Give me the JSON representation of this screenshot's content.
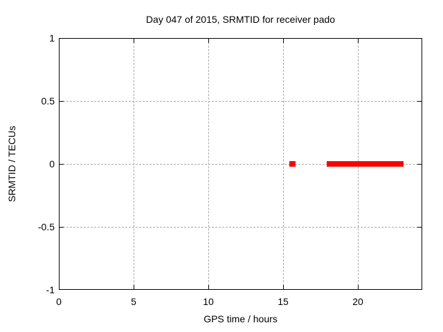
{
  "window": {
    "background": "#ffffff"
  },
  "chart_data": {
    "type": "scatter",
    "title": "Day 047 of 2015, SRMTID for receiver pado",
    "xlabel": "GPS time / hours",
    "ylabel": "SRMTID / TECUs",
    "xlim": [
      0,
      24.3
    ],
    "ylim": [
      -1,
      1
    ],
    "xticks": [
      0,
      5,
      10,
      15,
      20
    ],
    "xtick_labels": [
      "0",
      "5",
      "10",
      "15",
      "20"
    ],
    "yticks": [
      -1,
      -0.5,
      0,
      0.5,
      1
    ],
    "ytick_labels": [
      "-1",
      "-0.5",
      "0",
      "0.5",
      "1"
    ],
    "grid": true,
    "legend": "none",
    "grid_color": "#a8a8a8",
    "border_color": "#000000",
    "marker": "filled-square",
    "marker_size_px": 8,
    "series": [
      {
        "name": "SRMTID",
        "color": "#ff0000",
        "segments": [
          {
            "x_start": 15.4,
            "x_end": 15.85,
            "y": 0.0
          },
          {
            "x_start": 17.9,
            "x_end": 23.05,
            "y": 0.0
          }
        ]
      }
    ]
  }
}
